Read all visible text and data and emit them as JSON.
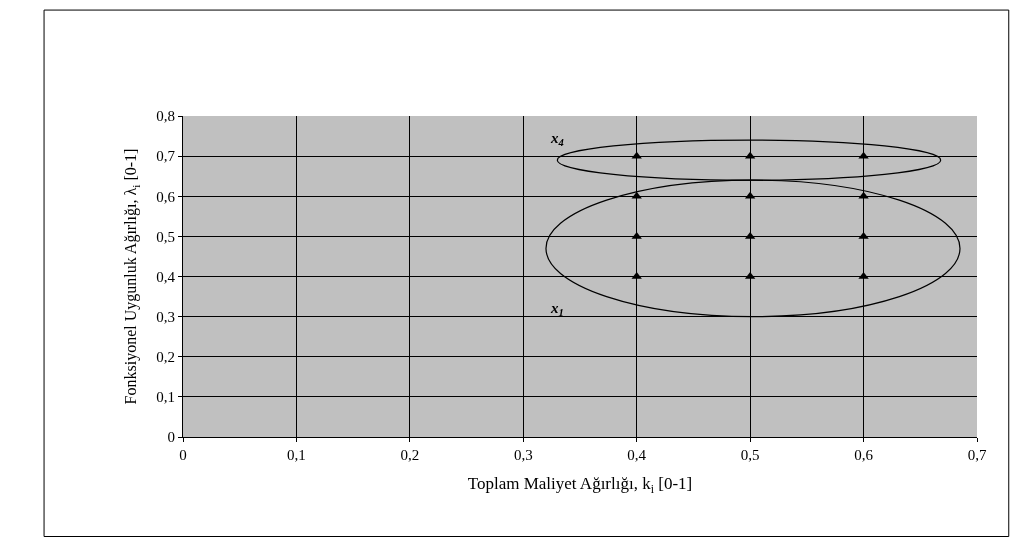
{
  "chart_data": {
    "type": "scatter",
    "xlabel": "Toplam Maliyet Ağırlığı, k$_{i}$ [0-1]",
    "ylabel": "Fonksiyonel Uygunluk Ağırlığı, λ$_{i}$ [0-1]",
    "x": [
      0.4,
      0.5,
      0.6,
      0.4,
      0.5,
      0.6,
      0.4,
      0.5,
      0.6,
      0.4,
      0.5,
      0.6
    ],
    "series": [
      {
        "color": "#000000",
        "values": [
          0.4,
          0.4,
          0.4,
          0.5,
          0.5,
          0.5,
          0.6,
          0.6,
          0.6,
          0.7,
          0.7,
          0.7
        ]
      }
    ],
    "marker": "triangle",
    "xlim": [
      0,
      0.7
    ],
    "xticks": [
      0,
      {
        "value": 0.1,
        "label": "0,1"
      },
      {
        "value": 0.2,
        "label": "0,2"
      },
      {
        "value": 0.3,
        "label": "0,3"
      },
      {
        "value": 0.4,
        "label": "0,4"
      },
      {
        "value": 0.5,
        "label": "0,5"
      },
      {
        "value": 0.6,
        "label": "0,6"
      },
      {
        "value": 0.7,
        "label": "0,7"
      }
    ],
    "ylim": [
      0,
      0.8
    ],
    "yticks": [
      0,
      {
        "value": 0.1,
        "label": "0,1"
      },
      {
        "value": 0.2,
        "label": "0,2"
      },
      {
        "value": 0.3,
        "label": "0,3"
      },
      {
        "value": 0.4,
        "label": "0,4"
      },
      {
        "value": 0.5,
        "label": "0,5"
      },
      {
        "value": 0.6,
        "label": "0,6"
      },
      {
        "value": 0.7,
        "label": "0,7"
      },
      {
        "value": 0.8,
        "label": "0,8"
      }
    ],
    "grid": true,
    "annotations": [
      "x$_{4}$",
      "x$_{1}$"
    ]
  }
}
